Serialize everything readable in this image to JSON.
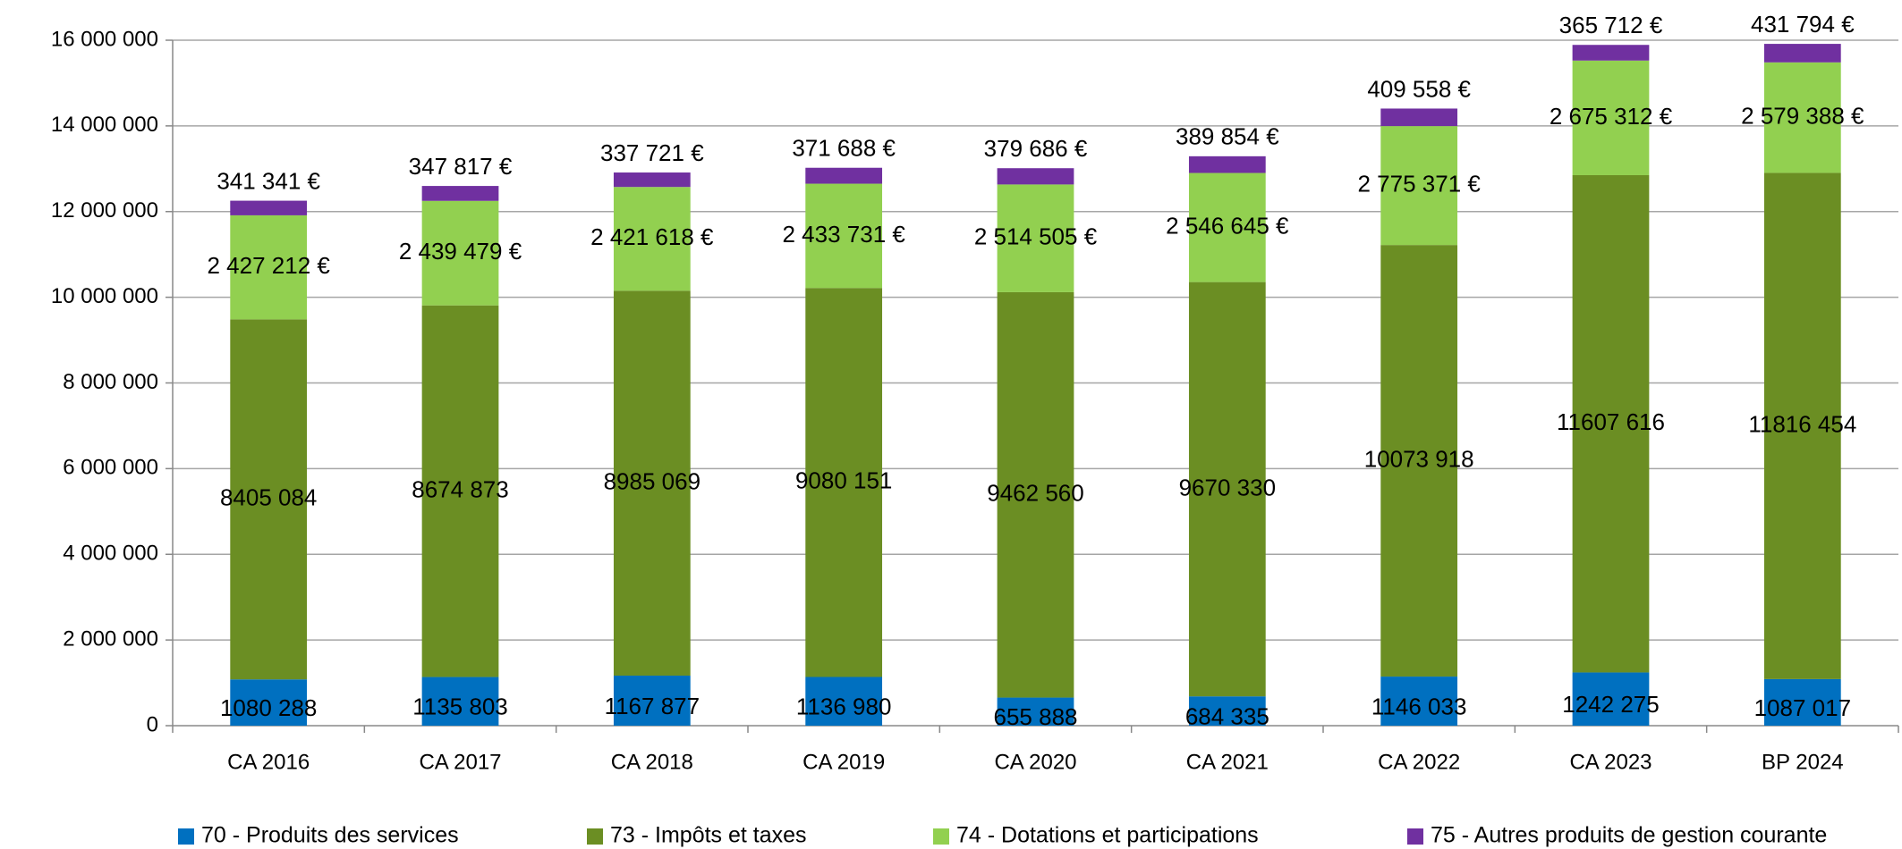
{
  "chart_data": {
    "type": "stacked_bar",
    "categories": [
      "CA 2016",
      "CA 2017",
      "CA 2018",
      "CA 2019",
      "CA 2020",
      "CA 2021",
      "CA 2022",
      "CA 2023",
      "BP 2024"
    ],
    "ylim": [
      0,
      16000000
    ],
    "yticks": [
      0,
      {
        "value": 2000000,
        "label": "2 000 000"
      },
      {
        "value": 4000000,
        "label": "4 000 000"
      },
      {
        "value": 6000000,
        "label": "6 000 000"
      },
      {
        "value": 8000000,
        "label": "8 000 000"
      },
      {
        "value": 10000000,
        "label": "10 000 000"
      },
      {
        "value": 12000000,
        "label": "12 000 000"
      },
      {
        "value": 14000000,
        "label": "14 000 000"
      },
      {
        "value": 16000000,
        "label": "16 000 000"
      }
    ],
    "grid": true,
    "legend": "bottom",
    "series": [
      {
        "name": "70 - Produits des services",
        "color": "#0070c0",
        "values": [
          1080288,
          1135803,
          1167877,
          1136980,
          655888,
          684335,
          1146033,
          1242275,
          1087017
        ],
        "value_labels": [
          "1080 288",
          "1135 803",
          "1167 877",
          "1136 980",
          "655 888",
          "684 335",
          "1146 033",
          "1242 275",
          "1087 017"
        ]
      },
      {
        "name": "73 - Impôts et taxes",
        "color": "#6b8e23",
        "values": [
          8405084,
          8674873,
          8985069,
          9080151,
          9462560,
          9670330,
          10073918,
          11607616,
          11816454
        ],
        "value_labels": [
          "8405 084",
          "8674 873",
          "8985 069",
          "9080 151",
          "9462 560",
          "9670 330",
          "10073 918",
          "11607 616",
          "11816 454"
        ]
      },
      {
        "name": "74 - Dotations et participations",
        "color": "#92d050",
        "values": [
          2427212,
          2439479,
          2421618,
          2433731,
          2514505,
          2546645,
          2775371,
          2675312,
          2579388
        ],
        "value_labels": [
          "2 427 212 €",
          "2 439 479 €",
          "2 421 618 €",
          "2 433 731 €",
          "2 514 505 €",
          "2 546 645 €",
          "2 775 371 €",
          "2 675 312 €",
          "2 579 388 €"
        ]
      },
      {
        "name": "75 - Autres produits de gestion courante",
        "color": "#7030a0",
        "values": [
          341341,
          347817,
          337721,
          371688,
          379686,
          389854,
          409558,
          365712,
          431794
        ],
        "value_labels": [
          "341 341 €",
          "347 817 €",
          "337 721 €",
          "371 688 €",
          "379 686 €",
          "389 854 €",
          "409 558 €",
          "365 712 €",
          "431 794 €"
        ]
      }
    ]
  }
}
